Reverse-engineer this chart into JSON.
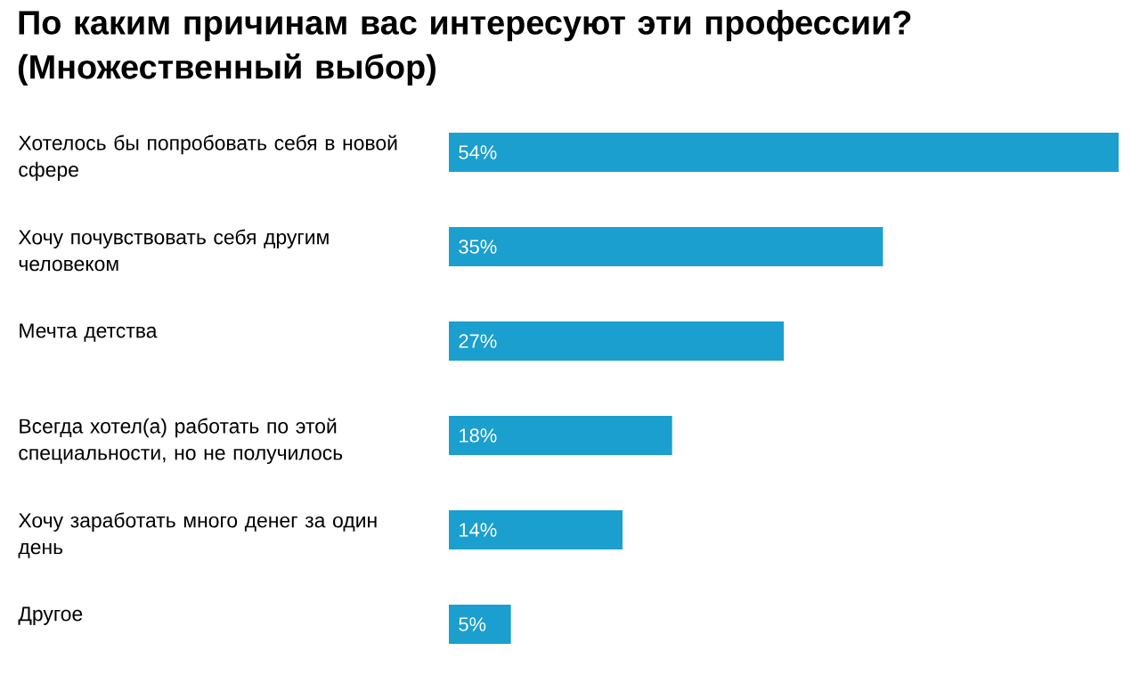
{
  "chart_data": {
    "type": "bar",
    "orientation": "horizontal",
    "title": "По каким причинам вас интересуют эти профессии? (Множественный выбор)",
    "categories": [
      "Хотелось бы попробовать себя в новой сфере",
      "Хочу почувствовать себя другим человеком",
      "Мечта детства",
      "Всегда хотел(а) работать по этой специальности, но не получилось",
      "Хочу заработать много денег за один день",
      "Другое"
    ],
    "values": [
      54,
      35,
      27,
      18,
      14,
      5
    ],
    "value_labels": [
      "54%",
      "35%",
      "27%",
      "18%",
      "14%",
      "5%"
    ],
    "color": "#1a9fcf"
  }
}
